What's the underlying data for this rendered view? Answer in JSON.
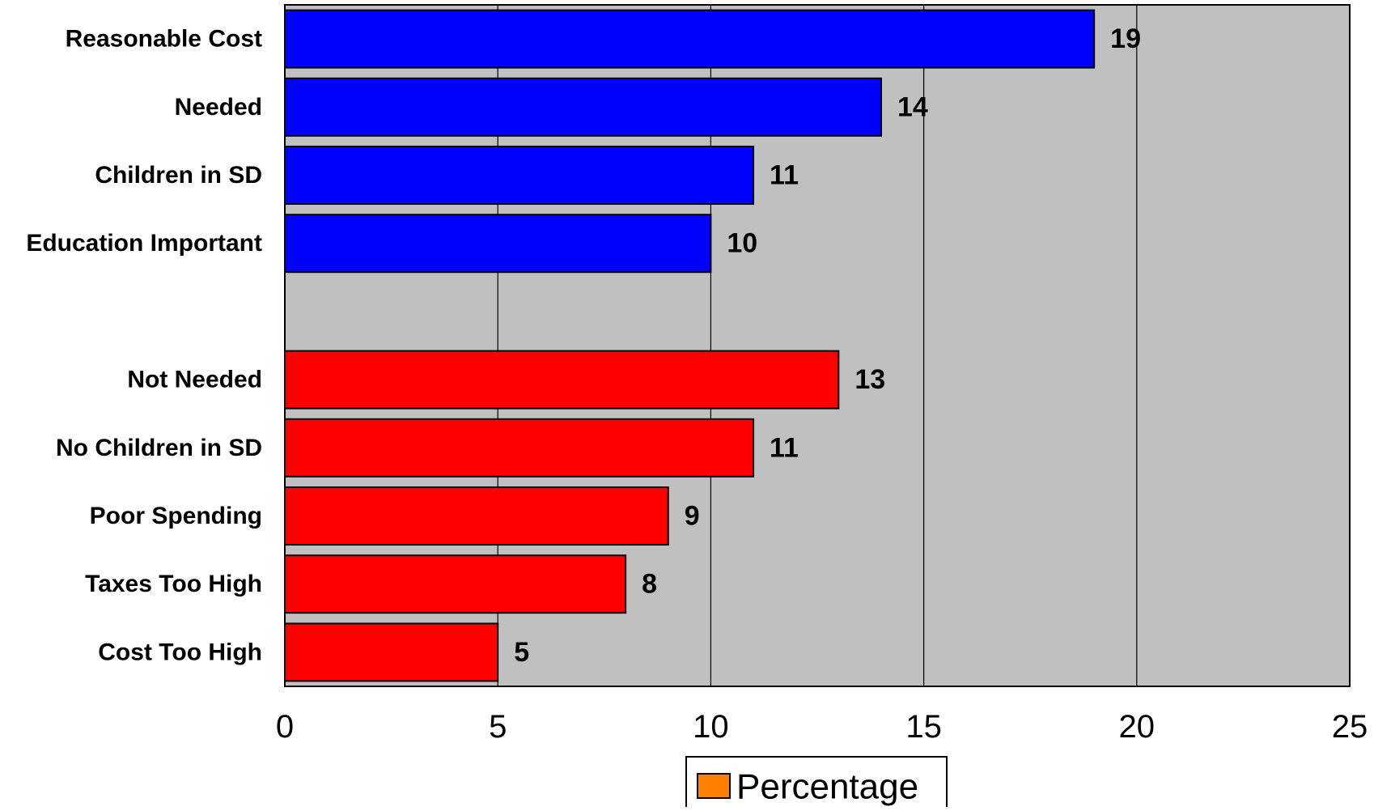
{
  "chart_data": {
    "type": "bar",
    "orientation": "horizontal",
    "categories": [
      "Reasonable Cost",
      "Needed",
      "Children in SD",
      "Education Important",
      "",
      "Not Needed",
      "No Children in SD",
      "Poor Spending",
      "Taxes Too High",
      "Cost Too High"
    ],
    "series": [
      {
        "name": "Percentage",
        "values": [
          19,
          14,
          11,
          10,
          null,
          13,
          11,
          9,
          8,
          5
        ],
        "value_labels": [
          "19",
          "14",
          "11",
          "10",
          "",
          "13",
          "11",
          "9",
          "8",
          "5"
        ],
        "bar_colors": [
          "#0000FF",
          "#0000FF",
          "#0000FF",
          "#0000FF",
          null,
          "#FF0000",
          "#FF0000",
          "#FF0000",
          "#FF0000",
          "#FF0000"
        ]
      }
    ],
    "xlim": [
      0,
      25
    ],
    "x_ticks": [
      "0",
      "5",
      "10",
      "15",
      "20",
      "25"
    ],
    "title": "",
    "xlabel": "",
    "ylabel": "",
    "grid": "vertical",
    "legend": {
      "position": "bottom-center",
      "label": "Percentage",
      "swatch_color": "#FF8000"
    },
    "plot_background": "#C0C0C0"
  }
}
